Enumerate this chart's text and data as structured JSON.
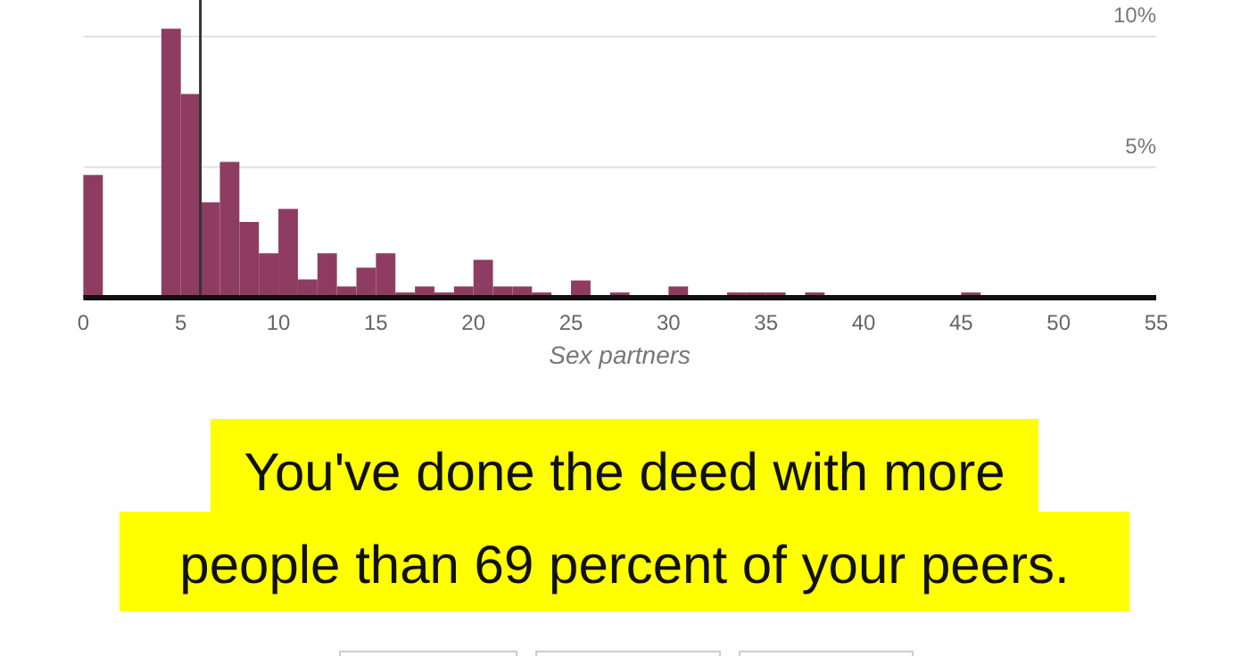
{
  "chart_data": {
    "type": "histogram",
    "color": "#8f3c62",
    "xlabel": "Sex partners",
    "bins": [
      0,
      1,
      2,
      3,
      4,
      5,
      6,
      7,
      8,
      9,
      10,
      11,
      12,
      13,
      14,
      15,
      16,
      17,
      18,
      19,
      20,
      21,
      22,
      23,
      24,
      25,
      26,
      27,
      28,
      29,
      30,
      31,
      32,
      33,
      34,
      35,
      36,
      37,
      38,
      39,
      40,
      41,
      42,
      43,
      44,
      45,
      46,
      47,
      48,
      49,
      50,
      51,
      52,
      53,
      54,
      55
    ],
    "values": [
      4.7,
      null,
      null,
      null,
      10.3,
      7.8,
      3.65,
      5.2,
      2.9,
      1.7,
      3.4,
      0.7,
      1.7,
      0.43,
      1.15,
      1.7,
      0.2,
      0.43,
      0.2,
      0.43,
      1.45,
      0.43,
      0.43,
      0.2,
      0,
      0.66,
      0,
      0.2,
      0,
      0,
      0.43,
      0,
      0,
      0.2,
      0.2,
      0.2,
      0,
      0.2,
      0,
      0,
      0,
      0,
      0,
      0,
      0,
      0.2,
      0,
      0,
      0,
      0,
      0,
      0,
      0,
      0,
      0
    ],
    "xlim": [
      0,
      55
    ],
    "xticks": [
      0,
      5,
      10,
      15,
      20,
      25,
      30,
      35,
      40,
      45,
      50,
      55
    ],
    "ylim": [
      0,
      11.4
    ],
    "yticks": [
      {
        "value": 5,
        "label": "5%"
      },
      {
        "value": 10,
        "label": "10%"
      }
    ],
    "grid": "y",
    "ref_lines": [
      {
        "axis": "x",
        "value": 6,
        "color": "#333333"
      }
    ],
    "annotations": [
      "You've done the deed with more people than 69 percent of your peers."
    ]
  }
}
